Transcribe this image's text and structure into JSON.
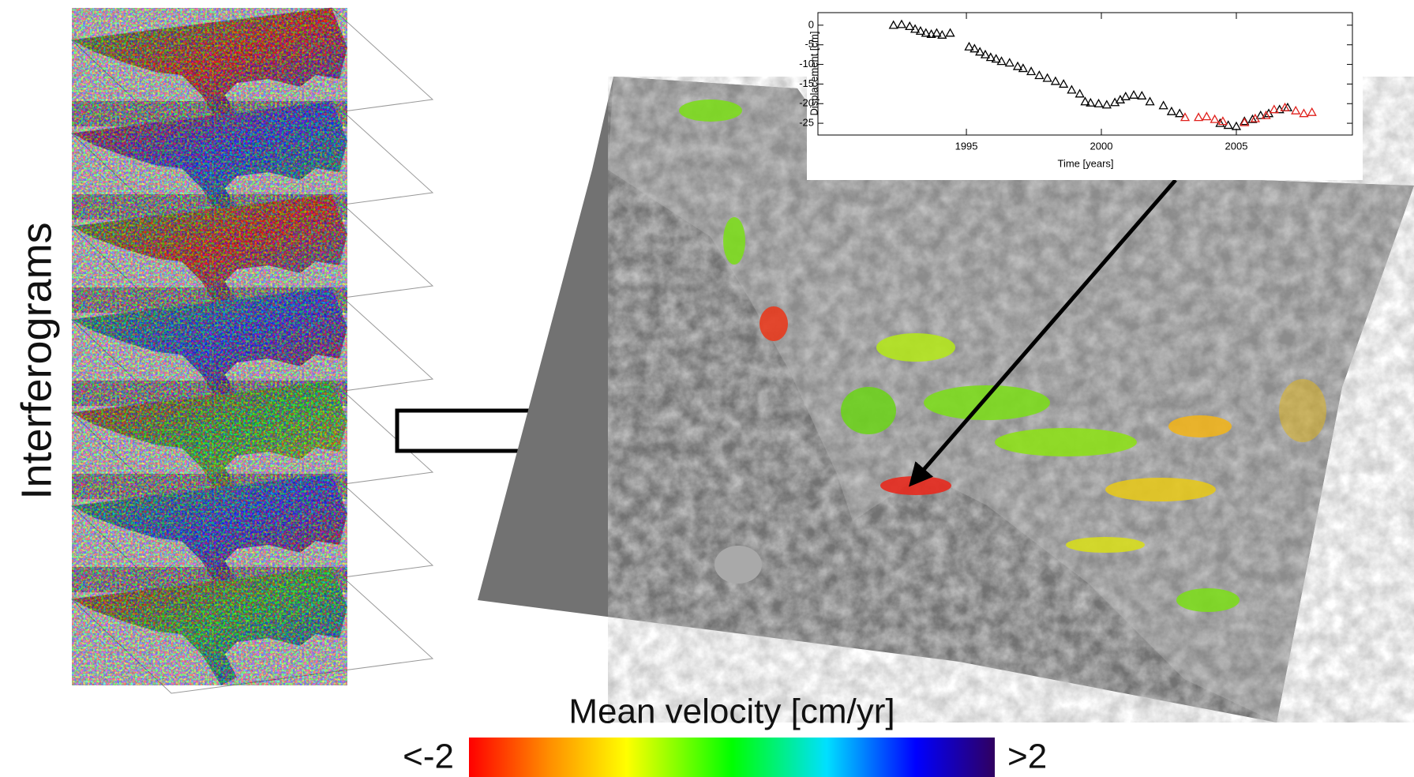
{
  "stack_label": "Interferograms",
  "colorbar": {
    "title": "Mean velocity [cm/yr]",
    "min_label": "<-2",
    "max_label": ">2"
  },
  "chart_data": {
    "type": "scatter",
    "xlabel": "Time [years]",
    "ylabel": "Displacement [cm]",
    "xlim": [
      1989.5,
      2009.3
    ],
    "ylim": [
      -28,
      3.2
    ],
    "xticks": [
      1995,
      2000,
      2005
    ],
    "yticks": [
      0,
      -5,
      -10,
      -15,
      -20,
      -25
    ],
    "series": [
      {
        "color": "#000000",
        "x": [
          1992.3,
          1992.6,
          1992.9,
          1993.1,
          1993.3,
          1993.5,
          1993.7,
          1993.9,
          1994.1,
          1994.4,
          1995.1,
          1995.3,
          1995.5,
          1995.7,
          1995.9,
          1996.1,
          1996.3,
          1996.6,
          1996.9,
          1997.1,
          1997.4,
          1997.7,
          1998.0,
          1998.3,
          1998.6,
          1998.9,
          1999.2,
          1999.4,
          1999.6,
          1999.9,
          2000.2,
          2000.5,
          2000.7,
          2000.9,
          2001.2,
          2001.5,
          2001.8,
          2002.3,
          2002.6,
          2002.9,
          2004.4,
          2004.7,
          2005.0,
          2005.3,
          2005.6,
          2005.9,
          2006.2,
          2006.6,
          2006.9
        ],
        "values": [
          0,
          0.2,
          -0.3,
          -1,
          -1.5,
          -2,
          -2.3,
          -2,
          -2.5,
          -2,
          -5.5,
          -6,
          -6.8,
          -7.5,
          -8.2,
          -8.6,
          -9.2,
          -9.6,
          -10.5,
          -11,
          -11.8,
          -12.8,
          -13.5,
          -14.3,
          -15,
          -16.5,
          -17.5,
          -19.5,
          -19.8,
          -20,
          -20.3,
          -19.7,
          -19,
          -18.2,
          -17.8,
          -18,
          -19.5,
          -20.5,
          -22,
          -22.5,
          -25,
          -25.5,
          -25.8,
          -24.5,
          -24,
          -23,
          -22.5,
          -21.5,
          -21
        ]
      },
      {
        "color": "#e0201c",
        "x": [
          2003.1,
          2003.6,
          2003.9,
          2004.2,
          2004.5,
          2005.3,
          2005.7,
          2006.1,
          2006.4,
          2006.8,
          2007.2,
          2007.5,
          2007.8
        ],
        "values": [
          -23.5,
          -23.5,
          -23.3,
          -24,
          -24.5,
          -24.8,
          -23.8,
          -23,
          -21.5,
          -21,
          -21.8,
          -22.5,
          -22.2
        ]
      }
    ]
  }
}
